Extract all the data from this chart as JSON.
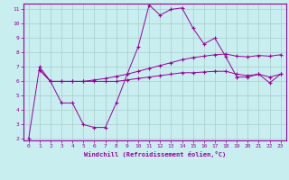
{
  "xlabel": "Windchill (Refroidissement éolien,°C)",
  "bg_color": "#c8eef0",
  "line_color": "#990099",
  "grid_color": "#aacccc",
  "x_min": 0,
  "x_max": 23,
  "y_min": 2,
  "y_max": 11,
  "line1_x": [
    0,
    1,
    2,
    3,
    4,
    5,
    6,
    7,
    8,
    9,
    10,
    11,
    12,
    13,
    14,
    15,
    16,
    17,
    18,
    19,
    20,
    21,
    22,
    23
  ],
  "line1_y": [
    2.0,
    7.0,
    6.0,
    4.5,
    4.5,
    3.0,
    2.8,
    2.8,
    4.5,
    6.5,
    8.4,
    11.3,
    10.6,
    11.0,
    11.1,
    9.7,
    8.6,
    9.0,
    7.7,
    6.3,
    6.3,
    6.5,
    5.9,
    6.5
  ],
  "line2_x": [
    1,
    2,
    3,
    4,
    5,
    6,
    7,
    8,
    9,
    10,
    11,
    12,
    13,
    14,
    15,
    16,
    17,
    18,
    19,
    20,
    21,
    22,
    23
  ],
  "line2_y": [
    6.8,
    6.0,
    6.0,
    6.0,
    6.0,
    6.0,
    6.0,
    6.0,
    6.1,
    6.2,
    6.3,
    6.4,
    6.5,
    6.6,
    6.6,
    6.65,
    6.7,
    6.7,
    6.5,
    6.4,
    6.5,
    6.3,
    6.5
  ],
  "line3_x": [
    1,
    2,
    3,
    4,
    5,
    6,
    7,
    8,
    9,
    10,
    11,
    12,
    13,
    14,
    15,
    16,
    17,
    18,
    19,
    20,
    21,
    22,
    23
  ],
  "line3_y": [
    6.8,
    6.0,
    6.0,
    6.0,
    6.0,
    6.1,
    6.2,
    6.35,
    6.5,
    6.7,
    6.9,
    7.1,
    7.3,
    7.5,
    7.65,
    7.75,
    7.85,
    7.9,
    7.75,
    7.7,
    7.8,
    7.75,
    7.85
  ]
}
